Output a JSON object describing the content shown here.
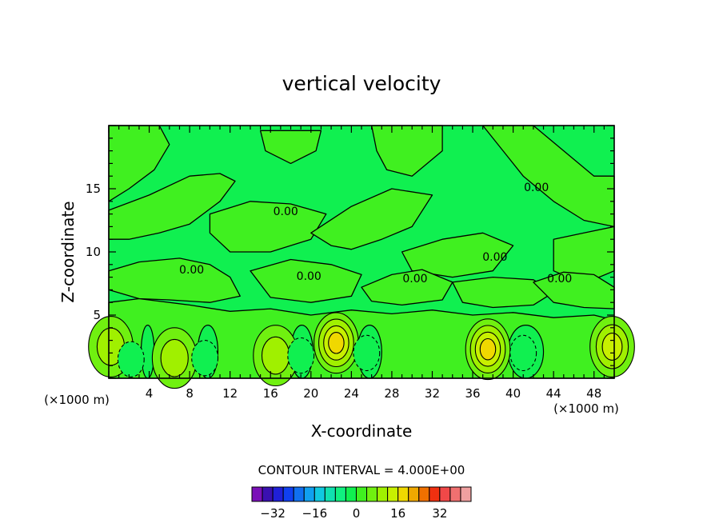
{
  "chart_data": {
    "type": "contour",
    "title": "vertical velocity",
    "xlabel": "X-coordinate",
    "ylabel": "Z-coordinate",
    "x_unit": "(×1000 m)",
    "y_unit": "(×1000 m)",
    "xlim": [
      0,
      50
    ],
    "ylim": [
      0,
      20
    ],
    "x_ticks": [
      "4",
      "8",
      "12",
      "16",
      "20",
      "24",
      "28",
      "32",
      "36",
      "40",
      "44",
      "48"
    ],
    "y_ticks": [
      "5",
      "10",
      "15"
    ],
    "contour_interval_label": "CONTOUR INTERVAL = 4.000E+00",
    "contour_interval": 4,
    "contour_labels": [
      {
        "text": "0.00",
        "x": 17.5,
        "y": 12.9
      },
      {
        "text": "0.00",
        "x": 8.2,
        "y": 8.3
      },
      {
        "text": "0.00",
        "x": 19.8,
        "y": 7.8
      },
      {
        "text": "0.00",
        "x": 30.3,
        "y": 7.6
      },
      {
        "text": "0.00",
        "x": 38.2,
        "y": 9.3
      },
      {
        "text": "0.00",
        "x": 42.3,
        "y": 14.8
      },
      {
        "text": "0.00",
        "x": 44.6,
        "y": 7.6
      }
    ],
    "features": [
      {
        "kind": "max",
        "x": 22.5,
        "y": 2.8,
        "level": 16
      },
      {
        "kind": "max",
        "x": 37.5,
        "y": 2.3,
        "level": 16
      },
      {
        "kind": "max",
        "x": 6.5,
        "y": 1.6,
        "level": 8
      },
      {
        "kind": "max",
        "x": 16.5,
        "y": 1.8,
        "level": 8
      },
      {
        "kind": "max",
        "x": 49.8,
        "y": 2.5,
        "level": 12
      },
      {
        "kind": "max",
        "x": 0.2,
        "y": 2.5,
        "level": 8
      },
      {
        "kind": "min",
        "x": 2.2,
        "y": 1.5,
        "level": -4
      },
      {
        "kind": "min",
        "x": 9.5,
        "y": 1.6,
        "level": -4
      },
      {
        "kind": "min",
        "x": 19.0,
        "y": 1.8,
        "level": -4
      },
      {
        "kind": "min",
        "x": 25.5,
        "y": 2.0,
        "level": -4
      },
      {
        "kind": "min",
        "x": 41.0,
        "y": 2.0,
        "level": -4
      }
    ],
    "colorbar": {
      "tick_labels": [
        "-32",
        "-16",
        "0",
        "16",
        "32"
      ],
      "tick_values": [
        -32,
        -16,
        0,
        16,
        32
      ],
      "levels": [
        -40,
        -36,
        -32,
        -28,
        -24,
        -20,
        -16,
        -12,
        -8,
        -4,
        0,
        4,
        8,
        12,
        16,
        20,
        24,
        28,
        32,
        36,
        40
      ],
      "colors": [
        "#7a10b8",
        "#3a10b0",
        "#2020d8",
        "#1040f0",
        "#1070f0",
        "#10a0f0",
        "#10c8e0",
        "#10e0b0",
        "#10f080",
        "#10f050",
        "#40f020",
        "#70f010",
        "#a0f000",
        "#c8f000",
        "#f0d800",
        "#f0a800",
        "#f07000",
        "#f03010",
        "#f04848",
        "#f07070",
        "#f0a0a0"
      ]
    }
  }
}
